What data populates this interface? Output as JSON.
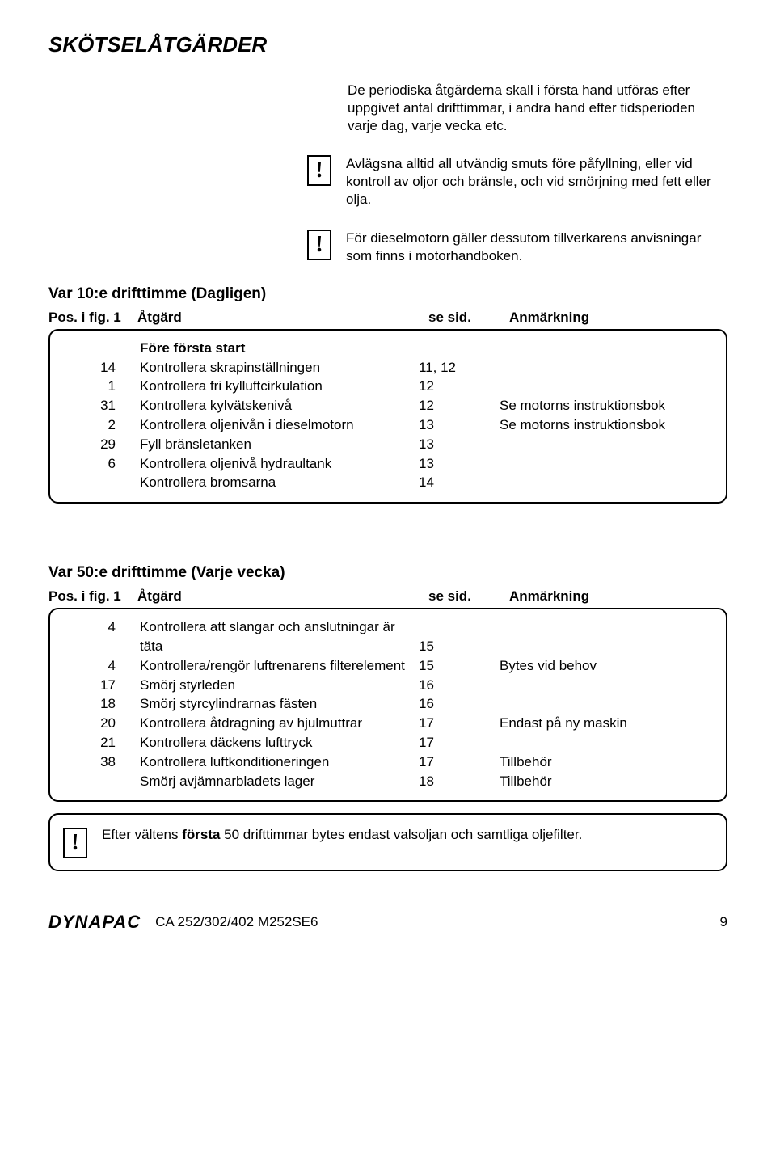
{
  "title": "SKÖTSELÅTGÄRDER",
  "intro": "De periodiska åtgärderna skall i första hand utföras efter uppgivet antal drifttimmar, i andra hand efter tidsperioden varje dag, varje vecka etc.",
  "note1": "Avlägsna alltid all utvändig smuts före påfyllning, eller vid kontroll av oljor och bränsle, och vid smörjning med fett eller olja.",
  "note2": "För dieselmotorn gäller dessutom tillverkarens anvisningar som finns i motorhandboken.",
  "section1": {
    "heading": "Var 10:e drifttimme (Dagligen)",
    "cols": {
      "c1": "Pos. i fig. 1",
      "c2": "Åtgärd",
      "c3": "se sid.",
      "c4": "Anmärkning"
    },
    "subhead": "Före första start",
    "rows": [
      {
        "pos": "14",
        "act": "Kontrollera skrapinställningen",
        "page": "11, 12",
        "rem": ""
      },
      {
        "pos": "1",
        "act": "Kontrollera fri kylluftcirkulation",
        "page": "12",
        "rem": ""
      },
      {
        "pos": "31",
        "act": "Kontrollera kylvätskenivå",
        "page": "12",
        "rem": "Se motorns instruktionsbok"
      },
      {
        "pos": "2",
        "act": "Kontrollera oljenivån i dieselmotorn",
        "page": "13",
        "rem": "Se motorns instruktionsbok"
      },
      {
        "pos": "29",
        "act": "Fyll bränsletanken",
        "page": "13",
        "rem": ""
      },
      {
        "pos": "6",
        "act": "Kontrollera oljenivå hydraultank",
        "page": "13",
        "rem": ""
      },
      {
        "pos": "",
        "act": "Kontrollera bromsarna",
        "page": "14",
        "rem": ""
      }
    ]
  },
  "section2": {
    "heading": "Var 50:e drifttimme (Varje vecka)",
    "cols": {
      "c1": "Pos. i fig. 1",
      "c2": "Åtgärd",
      "c3": "se sid.",
      "c4": "Anmärkning"
    },
    "rows": [
      {
        "pos": "4",
        "act": "Kontrollera att slangar och anslutningar är",
        "page": "",
        "rem": ""
      },
      {
        "pos": "",
        "act": "täta",
        "page": "15",
        "rem": ""
      },
      {
        "pos": "4",
        "act": "Kontrollera/rengör luftrenarens filterelement",
        "page": "15",
        "rem": "Bytes vid behov"
      },
      {
        "pos": "17",
        "act": "Smörj styrleden",
        "page": "16",
        "rem": ""
      },
      {
        "pos": "18",
        "act": "Smörj styrcylindrarnas fästen",
        "page": "16",
        "rem": ""
      },
      {
        "pos": "20",
        "act": "Kontrollera åtdragning av hjulmuttrar",
        "page": "17",
        "rem": "Endast på ny maskin"
      },
      {
        "pos": "21",
        "act": "Kontrollera däckens lufttryck",
        "page": "17",
        "rem": ""
      },
      {
        "pos": "38",
        "act": "Kontrollera luftkonditioneringen",
        "page": "17",
        "rem": "Tillbehör"
      },
      {
        "pos": "",
        "act": "Smörj avjämnarbladets lager",
        "page": "18",
        "rem": "Tillbehör"
      }
    ]
  },
  "bottom_note_pre": "Efter vältens ",
  "bottom_note_bold": "första",
  "bottom_note_post": " 50 drifttimmar bytes endast valsoljan och samtliga oljefilter.",
  "footer": {
    "logo": "DYNAPAC",
    "doc": "CA 252/302/402 M252SE6",
    "page": "9"
  }
}
